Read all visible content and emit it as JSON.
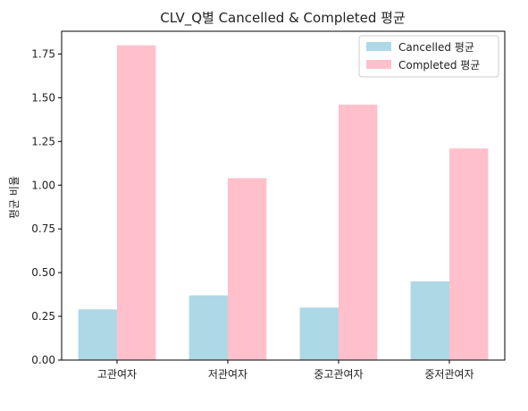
{
  "chart_data": {
    "type": "bar",
    "title": "CLV_Q별 Cancelled & Completed 평균",
    "xlabel": "",
    "ylabel": "평균 비율",
    "categories": [
      "고관여자",
      "저관여자",
      "중고관여자",
      "중저관여자"
    ],
    "series": [
      {
        "name": "Cancelled 평균",
        "color": "#add8e6",
        "values": [
          0.29,
          0.37,
          0.3,
          0.45
        ]
      },
      {
        "name": "Completed 평균",
        "color": "#ffc0cb",
        "values": [
          1.8,
          1.04,
          1.46,
          1.21
        ]
      }
    ],
    "ylim": [
      0,
      1.88
    ],
    "yticks": [
      "0.00",
      "0.25",
      "0.50",
      "0.75",
      "1.00",
      "1.25",
      "1.50",
      "1.75"
    ],
    "grid": false,
    "legend_position": "top-right"
  }
}
